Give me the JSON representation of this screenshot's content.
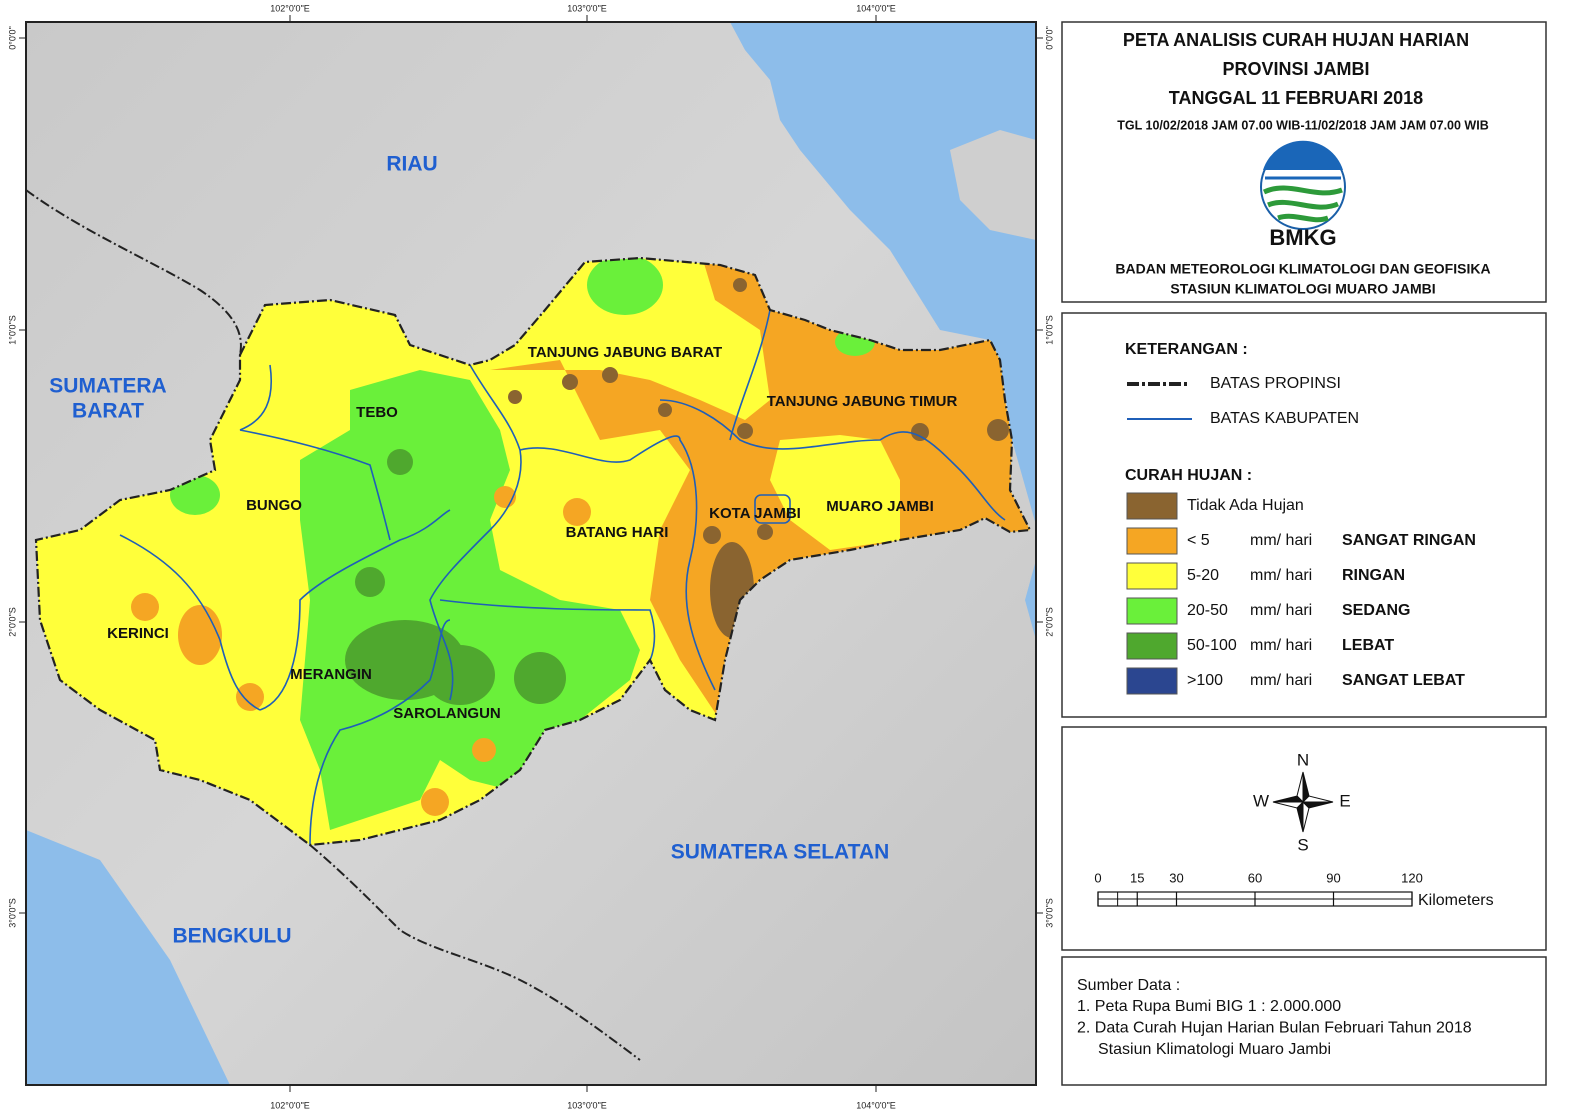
{
  "map": {
    "graticule": {
      "longitude": [
        "102°0'0\"E",
        "103°0'0\"E",
        "104°0'0\"E"
      ],
      "latitude": [
        "0°0'0\"",
        "1°0'0\"S",
        "2°0'0\"S",
        "3°0'0\"S"
      ]
    },
    "neighbors": [
      {
        "lines": [
          "RIAU"
        ]
      },
      {
        "lines": [
          "SUMATERA",
          "BARAT"
        ]
      },
      {
        "lines": [
          "BENGKULU"
        ]
      },
      {
        "lines": [
          "SUMATERA SELATAN"
        ]
      }
    ],
    "districts": [
      "TANJUNG JABUNG BARAT",
      "TEBO",
      "BUNGO",
      "TANJUNG JABUNG TIMUR",
      "BATANG HARI",
      "KOTA JAMBI",
      "MUARO JAMBI",
      "KERINCI",
      "MERANGIN",
      "SAROLANGUN"
    ]
  },
  "header": {
    "title_lines": [
      "PETA ANALISIS CURAH HUJAN HARIAN",
      "PROVINSI JAMBI",
      "TANGGAL 11 FEBRUARI 2018"
    ],
    "period": "TGL 10/02/2018 JAM 07.00 WIB-11/02/2018 JAM JAM 07.00 WIB",
    "logo_text": "BMKG",
    "agency_lines": [
      "BADAN METEOROLOGI KLIMATOLOGI DAN GEOFISIKA",
      "STASIUN KLIMATOLOGI MUARO JAMBI"
    ]
  },
  "legend": {
    "heading": "KETERANGAN :",
    "boundaries": [
      "BATAS PROPINSI",
      "BATAS KABUPATEN"
    ],
    "rainfall_heading": "CURAH HUJAN :",
    "classes": [
      {
        "range": "Tidak Ada Hujan",
        "color": "#8a6430"
      },
      {
        "range": "< 5",
        "unit": "mm/ hari",
        "category": "SANGAT RINGAN",
        "color": "#f5a623"
      },
      {
        "range": "5-20",
        "unit": "mm/ hari",
        "category": "RINGAN",
        "color": "#ffff3a"
      },
      {
        "range": "20-50",
        "unit": "mm/ hari",
        "category": "SEDANG",
        "color": "#6af03a"
      },
      {
        "range": "50-100",
        "unit": "mm/ hari",
        "category": "LEBAT",
        "color": "#4fa82e"
      },
      {
        "range": ">100",
        "unit": "mm/ hari",
        "category": "SANGAT LEBAT",
        "color": "#2b4690"
      }
    ]
  },
  "compass": {
    "north": "N",
    "west": "W",
    "east": "E",
    "south": "S"
  },
  "scale_bar": {
    "ticks": [
      0,
      15,
      30,
      60,
      90,
      120
    ],
    "unit": "Kilometers"
  },
  "source": {
    "heading": "Sumber Data :",
    "items": [
      "1. Peta Rupa Bumi BIG 1 : 2.000.000",
      "2. Data Curah Hujan Harian Bulan Februari Tahun 2018",
      "Stasiun Klimatologi Muaro Jambi"
    ]
  }
}
